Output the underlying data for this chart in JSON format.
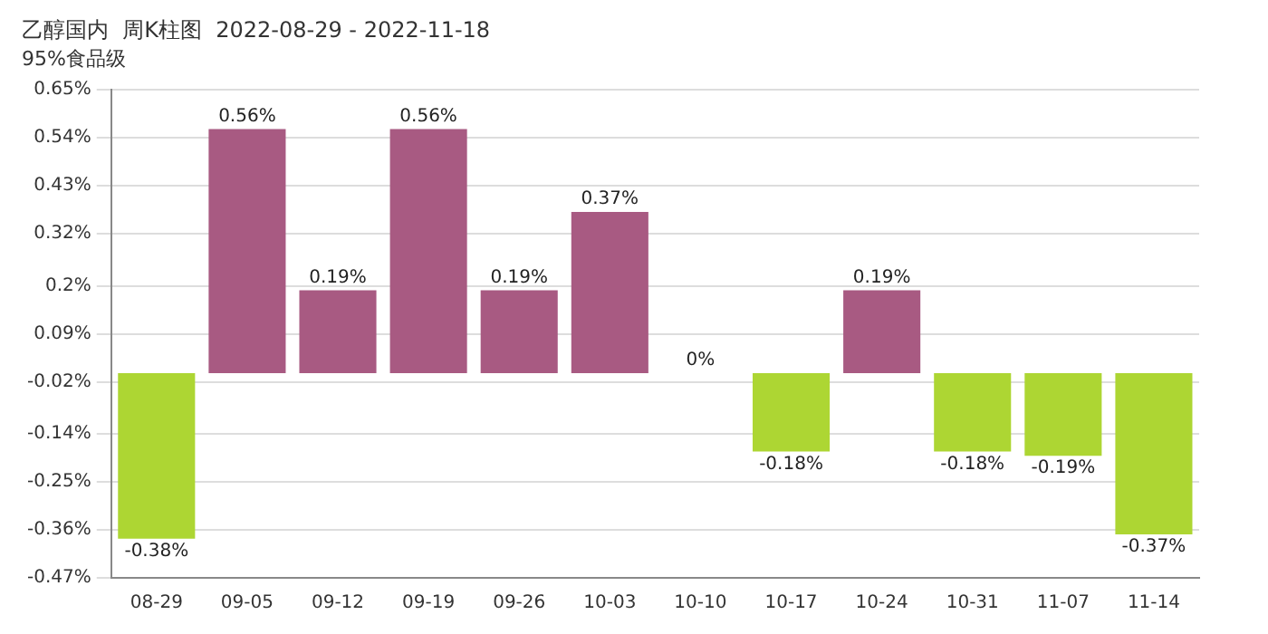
{
  "chart_data": {
    "type": "bar",
    "title": "乙醇国内  周K柱图  2022-08-29 - 2022-11-18",
    "subtitle": "95%食品级",
    "categories": [
      "08-29",
      "09-05",
      "09-12",
      "09-19",
      "09-26",
      "10-03",
      "10-10",
      "10-17",
      "10-24",
      "10-31",
      "11-07",
      "11-14"
    ],
    "values": [
      -0.38,
      0.56,
      0.19,
      0.56,
      0.19,
      0.37,
      0,
      -0.18,
      0.19,
      -0.18,
      -0.19,
      -0.37
    ],
    "value_labels": [
      "-0.38%",
      "0.56%",
      "0.19%",
      "0.56%",
      "0.19%",
      "0.37%",
      "0%",
      "-0.18%",
      "0.19%",
      "-0.18%",
      "-0.19%",
      "-0.37%"
    ],
    "colors": [
      "#add633",
      "#a85a82",
      "#a85a82",
      "#a85a82",
      "#a85a82",
      "#a85a82",
      "#a85a82",
      "#add633",
      "#a85a82",
      "#add633",
      "#add633",
      "#add633"
    ],
    "ylim": [
      -0.47,
      0.65
    ],
    "yticks": [
      {
        "value": 0.65,
        "label": "0.65%"
      },
      {
        "value": 0.54,
        "label": "0.54%"
      },
      {
        "value": 0.43,
        "label": "0.43%"
      },
      {
        "value": 0.32,
        "label": "0.32%"
      },
      {
        "value": 0.2,
        "label": "0.2%"
      },
      {
        "value": 0.09,
        "label": "0.09%"
      },
      {
        "value": -0.02,
        "label": "-0.02%"
      },
      {
        "value": -0.14,
        "label": "-0.14%"
      },
      {
        "value": -0.25,
        "label": "-0.25%"
      },
      {
        "value": -0.36,
        "label": "-0.36%"
      },
      {
        "value": -0.47,
        "label": "-0.47%"
      }
    ],
    "grid": "y",
    "legend": false
  }
}
